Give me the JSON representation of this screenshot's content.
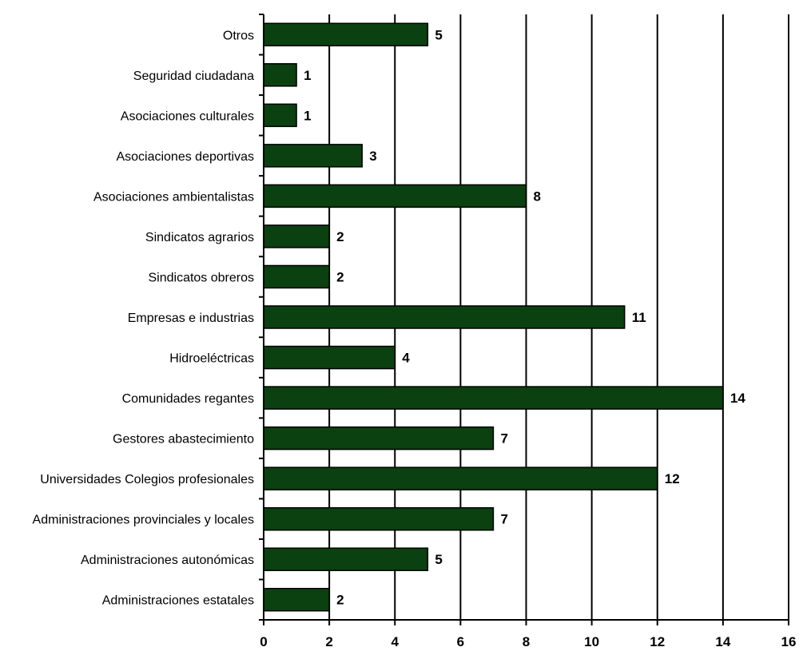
{
  "chart_data": {
    "type": "bar",
    "orientation": "horizontal",
    "categories": [
      "Otros",
      "Seguridad ciudadana",
      "Asociaciones culturales",
      "Asociaciones deportivas",
      "Asociaciones ambientalistas",
      "Sindicatos agrarios",
      "Sindicatos obreros",
      "Empresas e industrias",
      "Hidroeléctricas",
      "Comunidades regantes",
      "Gestores abastecimiento",
      "Universidades Colegios profesionales",
      "Administraciones provinciales y locales",
      "Administraciones autonómicas",
      "Administraciones estatales"
    ],
    "values": [
      5,
      1,
      1,
      3,
      8,
      2,
      2,
      11,
      4,
      14,
      7,
      12,
      7,
      5,
      2
    ],
    "xlim": [
      0,
      16
    ],
    "xticks": [
      0,
      2,
      4,
      6,
      8,
      10,
      12,
      14,
      16
    ],
    "title": "",
    "xlabel": "",
    "ylabel": "",
    "grid": "vertical",
    "legend": "none",
    "bar_color": "#0b4011",
    "data_labels": true
  }
}
